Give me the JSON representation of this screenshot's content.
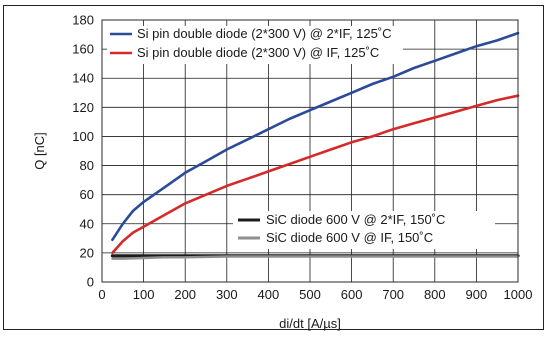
{
  "chart_data": {
    "type": "line",
    "xlabel": "di/dt   [A/µs]",
    "ylabel": "Q  [nC]",
    "xlim": [
      0,
      1000
    ],
    "ylim": [
      0,
      180
    ],
    "xticks": [
      0,
      100,
      200,
      300,
      400,
      500,
      600,
      700,
      800,
      900,
      1000
    ],
    "yticks": [
      0,
      20,
      40,
      60,
      80,
      100,
      120,
      140,
      160,
      180
    ],
    "grid": true,
    "series": [
      {
        "name": "Si pin double diode (2*300 V) @ 2*IF, 125˚C",
        "color": "#2b4a9a",
        "x": [
          25,
          50,
          75,
          100,
          125,
          150,
          200,
          250,
          300,
          350,
          400,
          450,
          500,
          550,
          600,
          650,
          700,
          750,
          800,
          850,
          900,
          950,
          1000
        ],
        "y": [
          29,
          40,
          49,
          55,
          60,
          65,
          75,
          83,
          91,
          98,
          105,
          112,
          118,
          124,
          130,
          136,
          141,
          147,
          152,
          157,
          162,
          166,
          171
        ]
      },
      {
        "name": "Si pin double diode (2*300 V) @ IF, 125˚C",
        "color": "#d42a2a",
        "x": [
          25,
          50,
          75,
          100,
          125,
          150,
          200,
          250,
          300,
          350,
          400,
          450,
          500,
          550,
          600,
          650,
          700,
          750,
          800,
          850,
          900,
          950,
          1000
        ],
        "y": [
          20,
          28,
          34,
          38,
          42,
          46,
          54,
          60,
          66,
          71,
          76,
          81,
          86,
          91,
          96,
          100,
          105,
          109,
          113,
          117,
          121,
          125,
          128
        ]
      },
      {
        "name": "SiC diode 600 V @ 2*IF, 150˚C",
        "color": "#1c1c1c",
        "x": [
          25,
          100,
          200,
          300,
          400,
          500,
          600,
          700,
          800,
          900,
          1000
        ],
        "y": [
          18,
          18,
          18,
          18,
          18,
          18,
          18,
          18,
          18,
          18,
          18
        ]
      },
      {
        "name": "SiC diode 600 V @ IF, 150˚C",
        "color": "#8f8f8f",
        "x": [
          25,
          50,
          100,
          150,
          200,
          300,
          400,
          500,
          600,
          700,
          800,
          900,
          1000
        ],
        "y": [
          16,
          16,
          16.5,
          17,
          17,
          17.5,
          17.5,
          17.5,
          17.5,
          17.5,
          17.5,
          17.5,
          17.5
        ]
      }
    ]
  }
}
